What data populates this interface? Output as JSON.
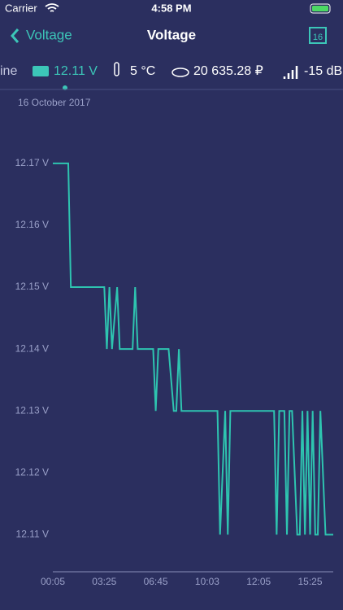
{
  "status_bar": {
    "carrier": "Carrier",
    "time": "4:58 PM"
  },
  "nav": {
    "back": "Voltage",
    "title": "Voltage",
    "calendar_day": "16"
  },
  "stats": {
    "status": "ine",
    "voltage": "12.11 V",
    "temperature": "5 °C",
    "balance": "20 635.28 ₽",
    "signal": "-15 dB"
  },
  "chart_data": {
    "type": "line",
    "subtitle": "16 October 2017",
    "x": [
      0,
      6,
      7,
      20,
      21,
      22,
      23,
      25,
      26,
      31,
      32,
      33,
      39,
      40,
      41,
      45,
      47,
      48,
      49,
      50,
      64,
      65,
      67,
      68,
      69,
      86,
      87,
      88,
      90,
      91,
      92,
      93,
      95,
      96,
      97,
      98,
      99,
      100,
      101,
      102,
      103,
      104,
      106,
      109
    ],
    "series": [
      {
        "color": "#2ec4b0",
        "values": [
          12.17,
          12.17,
          12.15,
          12.15,
          12.14,
          12.15,
          12.14,
          12.15,
          12.14,
          12.14,
          12.15,
          12.14,
          12.14,
          12.13,
          12.14,
          12.14,
          12.13,
          12.13,
          12.14,
          12.13,
          12.13,
          12.11,
          12.13,
          12.11,
          12.13,
          12.13,
          12.11,
          12.13,
          12.13,
          12.11,
          12.13,
          12.13,
          12.11,
          12.11,
          12.13,
          12.11,
          12.13,
          12.11,
          12.13,
          12.11,
          12.11,
          12.13,
          12.11,
          12.11
        ]
      }
    ],
    "xlim": [
      0,
      109
    ],
    "xticks": [
      {
        "value": 0,
        "label": "00:05"
      },
      {
        "value": 20,
        "label": "03:25"
      },
      {
        "value": 40,
        "label": "06:45"
      },
      {
        "value": 60,
        "label": "10:03"
      },
      {
        "value": 80,
        "label": "12:05"
      },
      {
        "value": 100,
        "label": "15:25"
      }
    ],
    "ylim": [
      12.104,
      12.178
    ],
    "yticks": [
      {
        "value": 12.11,
        "label": "12.11 V"
      },
      {
        "value": 12.12,
        "label": "12.12 V"
      },
      {
        "value": 12.13,
        "label": "12.13 V"
      },
      {
        "value": 12.14,
        "label": "12.14 V"
      },
      {
        "value": 12.15,
        "label": "12.15 V"
      },
      {
        "value": 12.16,
        "label": "12.16 V"
      },
      {
        "value": 12.17,
        "label": "12.17 V"
      }
    ]
  }
}
